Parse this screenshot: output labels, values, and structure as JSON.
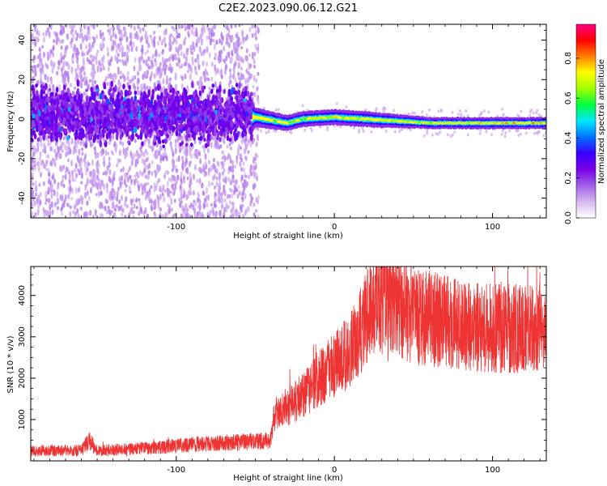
{
  "figure_title": "C2E2.2023.090.06.12.G21",
  "chart_data": [
    {
      "type": "heatmap",
      "title": "",
      "xlabel": "Height of straight line (km)",
      "ylabel": "Frequency (Hz)",
      "xlim": [
        -192,
        134
      ],
      "ylim": [
        -50,
        48
      ],
      "x_ticks": [
        -100,
        0,
        100
      ],
      "y_ticks": [
        -40,
        -20,
        0,
        20,
        40
      ],
      "colorbar": {
        "label": "Normalized spectral amplitude",
        "range": [
          0,
          0.97
        ],
        "ticks": [
          0.0,
          0.2,
          0.4,
          0.6,
          0.8
        ],
        "colormap": [
          "#ffffff",
          "#d8b8f0",
          "#a060e8",
          "#7a00e8",
          "#3a00ff",
          "#0070ff",
          "#00e8ff",
          "#00ff40",
          "#a0ff00",
          "#ffff00",
          "#ff8000",
          "#ff0000",
          "#ff0080"
        ]
      },
      "ridge": [
        {
          "x": -192,
          "f": 2,
          "width": 14,
          "amp": 0.2
        },
        {
          "x": -55,
          "f": 1,
          "width": 14,
          "amp": 0.3
        },
        {
          "x": -50,
          "f": 1,
          "width": 5,
          "amp": 0.55
        },
        {
          "x": -30,
          "f": -2,
          "width": 4,
          "amp": 0.6
        },
        {
          "x": -20,
          "f": 0,
          "width": 4,
          "amp": 0.65
        },
        {
          "x": 0,
          "f": 1,
          "width": 4,
          "amp": 0.75
        },
        {
          "x": 20,
          "f": 0,
          "width": 4,
          "amp": 0.7
        },
        {
          "x": 60,
          "f": -2,
          "width": 3,
          "amp": 0.75
        },
        {
          "x": 134,
          "f": -2,
          "width": 3,
          "amp": 0.8
        }
      ]
    },
    {
      "type": "line",
      "title": "",
      "xlabel": "Height of straight line (km)",
      "ylabel": "SNR (10 * v/v)",
      "xlim": [
        -192,
        134
      ],
      "ylim": [
        0,
        4700
      ],
      "x_ticks": [
        -100,
        0,
        100
      ],
      "y_ticks": [
        1000,
        2000,
        3000,
        4000
      ],
      "color": "#ee3333",
      "series": [
        {
          "x": [
            -192,
            -160,
            -155,
            -150,
            -120,
            -90,
            -60,
            -40,
            -38,
            -30,
            -20,
            -10,
            0,
            10,
            15,
            20,
            25,
            30,
            35,
            40,
            50,
            60,
            70,
            80,
            90,
            100,
            110,
            120,
            134
          ],
          "y": [
            250,
            250,
            500,
            250,
            300,
            400,
            450,
            500,
            1100,
            1300,
            1600,
            2000,
            2300,
            2700,
            3000,
            3500,
            3800,
            3850,
            3800,
            3700,
            3500,
            3450,
            3350,
            3300,
            3250,
            3200,
            3200,
            3200,
            3200
          ]
        }
      ]
    }
  ]
}
